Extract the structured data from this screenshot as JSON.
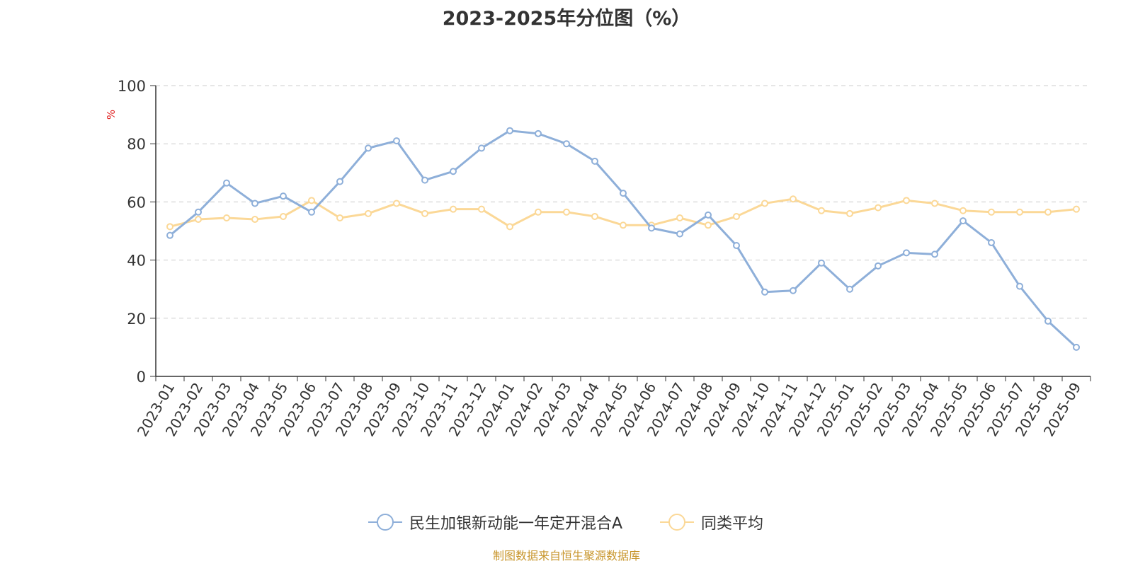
{
  "chart_data": {
    "type": "line",
    "title": "2023-2025年分位图（%）",
    "ylabel": "%",
    "ylim": [
      0,
      100
    ],
    "yticks": [
      0,
      20,
      40,
      60,
      80,
      100
    ],
    "grid": true,
    "legend_position": "bottom",
    "categories": [
      "2023-01",
      "2023-02",
      "2023-03",
      "2023-04",
      "2023-05",
      "2023-06",
      "2023-07",
      "2023-08",
      "2023-09",
      "2023-10",
      "2023-11",
      "2023-12",
      "2024-01",
      "2024-02",
      "2024-03",
      "2024-04",
      "2024-05",
      "2024-06",
      "2024-07",
      "2024-08",
      "2024-09",
      "2024-10",
      "2024-11",
      "2024-12",
      "2025-01",
      "2025-02",
      "2025-03",
      "2025-04",
      "2025-05",
      "2025-06",
      "2025-07",
      "2025-08",
      "2025-09"
    ],
    "series": [
      {
        "name": "民生加银新动能一年定开混合A",
        "color": "#8eafd9",
        "values": [
          48.5,
          56.5,
          66.5,
          59.5,
          62,
          56.5,
          67,
          78.5,
          81,
          67.5,
          70.5,
          78.5,
          84.5,
          83.5,
          80,
          74,
          63,
          51,
          49,
          55.5,
          45,
          29,
          29.5,
          39,
          30,
          38,
          42.5,
          42,
          53.5,
          46,
          31,
          19,
          10
        ]
      },
      {
        "name": "同类平均",
        "color": "#fbd897",
        "values": [
          51.5,
          54,
          54.5,
          54,
          55,
          60.5,
          54.5,
          56,
          59.5,
          56,
          57.5,
          57.5,
          51.5,
          56.5,
          56.5,
          55,
          52,
          52,
          54.5,
          52,
          55,
          59.5,
          61,
          57,
          56,
          58,
          60.5,
          59.5,
          57,
          56.5,
          56.5,
          56.5,
          57.5
        ]
      }
    ]
  },
  "source_note": "制图数据来自恒生聚源数据库",
  "colors": {
    "axis": "#333333",
    "grid": "#cccccc",
    "ylabel": "#e02020",
    "source": "#c8962d"
  }
}
